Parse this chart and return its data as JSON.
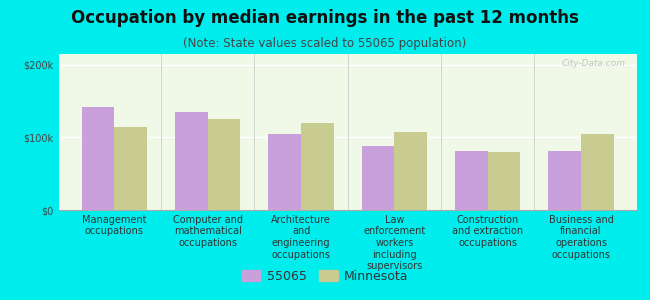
{
  "title": "Occupation by median earnings in the past 12 months",
  "subtitle": "(Note: State values scaled to 55065 population)",
  "background_outer": "#00eded",
  "background_inner": "#f0f8e8",
  "categories": [
    "Management\noccupations",
    "Computer and\nmathematical\noccupations",
    "Architecture\nand\nengineering\noccupations",
    "Law\nenforcement\nworkers\nincluding\nsupervisors",
    "Construction\nand extraction\noccupations",
    "Business and\nfinancial\noperations\noccupations"
  ],
  "values_55065": [
    142000,
    135000,
    105000,
    88000,
    82000,
    82000
  ],
  "values_minnesota": [
    115000,
    125000,
    120000,
    108000,
    80000,
    105000
  ],
  "color_55065": "#c9a0dc",
  "color_minnesota": "#c8cc90",
  "ylim": [
    0,
    215000
  ],
  "yticks": [
    0,
    100000,
    200000
  ],
  "ytick_labels": [
    "$0",
    "$100k",
    "$200k"
  ],
  "legend_55065": "55065",
  "legend_minnesota": "Minnesota",
  "bar_width": 0.35,
  "title_fontsize": 12,
  "subtitle_fontsize": 8.5,
  "axis_label_fontsize": 7,
  "legend_fontsize": 9,
  "watermark": "City-Data.com"
}
